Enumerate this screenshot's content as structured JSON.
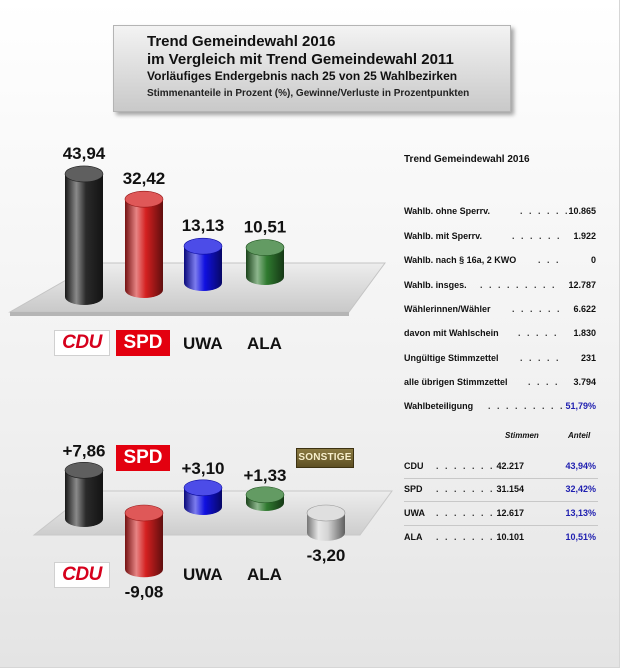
{
  "header": {
    "line1": "Trend Gemeindewahl 2016",
    "line2": "im Vergleich mit Trend  Gemeindewahl 2011",
    "line3": "Vorläufiges Endergebnis nach 25 von 25 Wahlbezirken",
    "line4": "Stimmenanteile in Prozent (%), Gewinne/Verluste in Prozentpunkten"
  },
  "chart_data": [
    {
      "type": "bar",
      "categories": [
        "CDU",
        "SPD",
        "UWA",
        "ALA"
      ],
      "values": [
        43.94,
        32.42,
        13.13,
        10.51
      ],
      "value_labels": [
        "43,94",
        "32,42",
        "13,13",
        "10,51"
      ],
      "colors": [
        "#2a2a2a",
        "#d42020",
        "#1010e0",
        "#2f7a2f"
      ],
      "ylim": [
        0,
        50
      ]
    },
    {
      "type": "bar",
      "categories": [
        "CDU",
        "SPD",
        "UWA",
        "ALA",
        "SONSTIGE"
      ],
      "values": [
        7.86,
        -9.08,
        3.1,
        1.33,
        -3.2
      ],
      "value_labels": [
        "+7,86",
        "-9,08",
        "+3,10",
        "+1,33",
        "-3,20"
      ],
      "colors": [
        "#2a2a2a",
        "#d42020",
        "#1010e0",
        "#2f7a2f",
        "#d4d4d4"
      ],
      "ylim": [
        -10,
        10
      ]
    }
  ],
  "logos": {
    "cdu": "CDU",
    "spd": "SPD",
    "uwa": "UWA",
    "ala": "ALA",
    "sonstige": "SONSTIGE"
  },
  "stats": {
    "title": "Trend Gemeindewahl 2016",
    "rows": [
      {
        "label": "Wahlb. ohne Sperrv.",
        "dots": ". . . . . .",
        "value": "10.865"
      },
      {
        "label": "Wahlb. mit Sperrv.",
        "dots": ". . . . . .",
        "value": "1.922"
      },
      {
        "label": "Wahlb. nach § 16a, 2 KWO",
        "dots": ". . .",
        "value": "0"
      },
      {
        "label": "Wahlb. insges.",
        "dots": ". . . . . . . . .",
        "value": "12.787"
      },
      {
        "label": "Wählerinnen/Wähler",
        "dots": ". . . . . .",
        "value": "6.622"
      },
      {
        "label": "davon mit Wahlschein",
        "dots": ". . . . .",
        "value": "1.830"
      },
      {
        "label": "Ungültige Stimmzettel",
        "dots": ". . . . .",
        "value": "231"
      },
      {
        "label": "alle übrigen Stimmzettel",
        "dots": ". . . .",
        "value": "3.794"
      },
      {
        "label": "Wahlbeteiligung",
        "dots": ". . . . . . . . .",
        "value": "51,79%"
      }
    ]
  },
  "results": {
    "col_votes": "Stimmen",
    "col_share": "Anteil",
    "dots": ". . . . . . . .",
    "rows": [
      {
        "party": "CDU",
        "votes": "42.217",
        "share": "43,94%"
      },
      {
        "party": "SPD",
        "votes": "31.154",
        "share": "32,42%"
      },
      {
        "party": "UWA",
        "votes": "12.617",
        "share": "13,13%"
      },
      {
        "party": "ALA",
        "votes": "10.101",
        "share": "10,51%"
      }
    ]
  }
}
